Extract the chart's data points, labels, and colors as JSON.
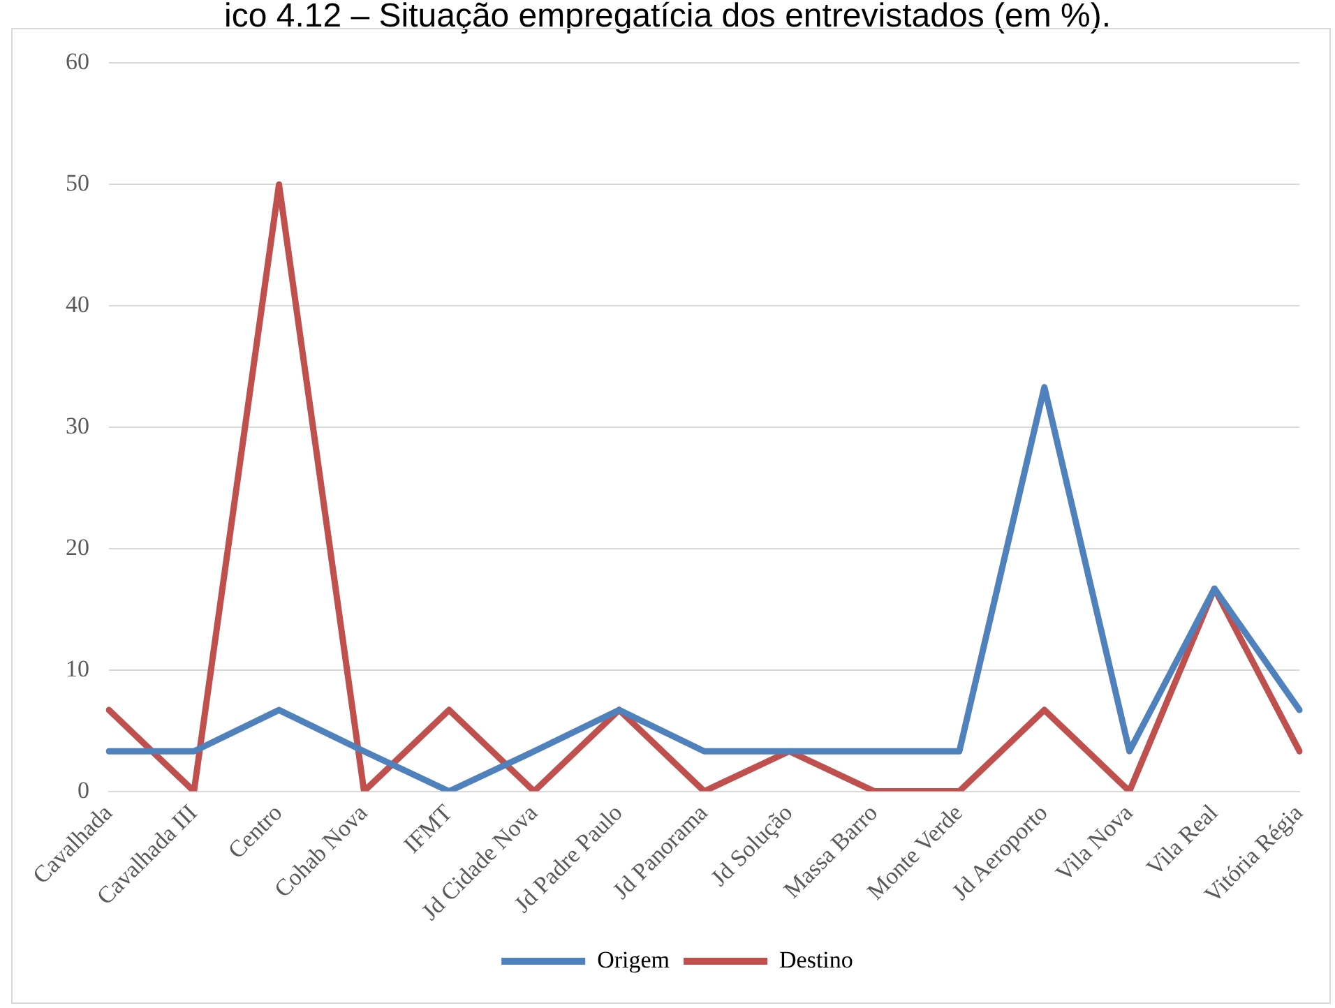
{
  "chart_data": {
    "type": "line",
    "title": "ico 4.12 – Situação empregatícia dos entrevistados (em %).",
    "categories": [
      "Cavalhada",
      "Cavalhada III",
      "Centro",
      "Cohab Nova",
      "IFMT",
      "Jd Cidade Nova",
      "Jd Padre Paulo",
      "Jd Panorama",
      "Jd Solução",
      "Massa Barro",
      "Monte Verde",
      "Jd Aeroporto",
      "Vila Nova",
      "Vila Real",
      "Vitória Régia"
    ],
    "series": [
      {
        "name": "Origem",
        "color": "#4f81bd",
        "values": [
          3.3,
          3.3,
          6.7,
          3.3,
          0,
          3.3,
          6.7,
          3.3,
          3.3,
          3.3,
          3.3,
          33.3,
          3.3,
          16.7,
          6.7
        ]
      },
      {
        "name": "Destino",
        "color": "#c0504d",
        "values": [
          6.7,
          0,
          50,
          0,
          6.7,
          0,
          6.7,
          0,
          3.3,
          0,
          0,
          6.7,
          0,
          16.7,
          3.3
        ]
      }
    ],
    "ylim": [
      0,
      60
    ],
    "yticks": [
      0,
      10,
      20,
      30,
      40,
      50,
      60
    ],
    "grid": "y",
    "legend": "bottom",
    "marker": "none",
    "line_style": "solid"
  }
}
